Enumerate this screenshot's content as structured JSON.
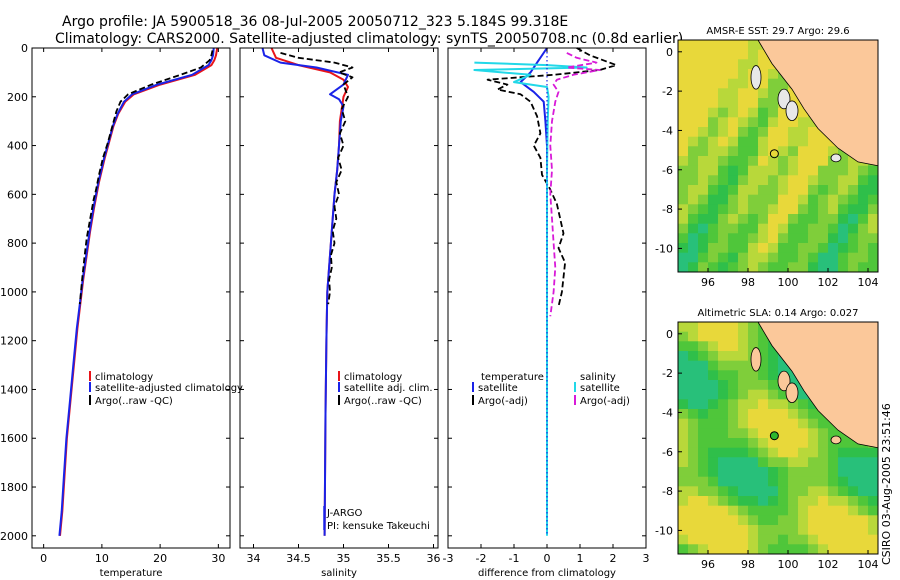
{
  "header": {
    "title_line1": "Argo profile: JA 5900518_36 08-Jul-2005 20050712_323 5.184S 99.318E",
    "title_line2": "Climatology: CARS2000. Satellite-adjusted climatology: synTS_20050708.nc (0.8d earlier)"
  },
  "footer": {
    "credit": "CSIRO 03-Aug-2005 23:51:46"
  },
  "colors": {
    "climatology": "#e8141a",
    "satellite": "#1a23e8",
    "argo": "#000000",
    "sat_diff": "#22d8e8",
    "argo_adj": "#d81ad8",
    "land": "#fbc89a",
    "ocean": "#3fbf3a"
  },
  "chart_data": [
    {
      "id": "temperature",
      "type": "line",
      "xlabel": "temperature",
      "ylabel": "",
      "xlim": [
        -2,
        32
      ],
      "ylim": [
        2050,
        0
      ],
      "xticks": [
        0,
        10,
        20,
        30
      ],
      "yticks": [
        0,
        200,
        400,
        600,
        800,
        1000,
        1200,
        1400,
        1600,
        1800,
        2000
      ],
      "legend": [
        "climatology",
        "satellite-adjusted climatology",
        "Argo(..raw -QC)"
      ],
      "series": [
        {
          "name": "climatology",
          "style": "solid",
          "color": "#e8141a",
          "points": [
            [
              29.8,
              0
            ],
            [
              29.6,
              30
            ],
            [
              29.3,
              50
            ],
            [
              28.8,
              70
            ],
            [
              26,
              110
            ],
            [
              20,
              150
            ],
            [
              15.5,
              190
            ],
            [
              14,
              220
            ],
            [
              12.8,
              270
            ],
            [
              12,
              320
            ],
            [
              11.3,
              380
            ],
            [
              10.5,
              450
            ],
            [
              9.5,
              550
            ],
            [
              8.7,
              650
            ],
            [
              8,
              750
            ],
            [
              7.4,
              850
            ],
            [
              6.8,
              950
            ],
            [
              6.3,
              1050
            ],
            [
              5.8,
              1150
            ],
            [
              5.2,
              1300
            ],
            [
              4.6,
              1450
            ],
            [
              4,
              1600
            ],
            [
              3.6,
              1750
            ],
            [
              3.2,
              1900
            ],
            [
              2.8,
              2000
            ]
          ]
        },
        {
          "name": "satellite-adjusted climatology",
          "style": "solid",
          "color": "#1a23e8",
          "points": [
            [
              29.2,
              0
            ],
            [
              29.1,
              30
            ],
            [
              28.8,
              50
            ],
            [
              28.3,
              70
            ],
            [
              25.5,
              110
            ],
            [
              19.5,
              150
            ],
            [
              15.2,
              190
            ],
            [
              13.8,
              220
            ],
            [
              12.7,
              270
            ],
            [
              11.9,
              320
            ],
            [
              11.2,
              380
            ],
            [
              10.4,
              450
            ],
            [
              9.4,
              550
            ],
            [
              8.6,
              650
            ],
            [
              7.9,
              750
            ],
            [
              7.3,
              850
            ],
            [
              6.7,
              950
            ],
            [
              6.2,
              1050
            ],
            [
              5.7,
              1150
            ],
            [
              5.1,
              1300
            ],
            [
              4.5,
              1450
            ],
            [
              3.9,
              1600
            ],
            [
              3.5,
              1750
            ],
            [
              3.1,
              1900
            ],
            [
              2.7,
              2000
            ]
          ]
        },
        {
          "name": "Argo(..raw -QC)",
          "style": "dashed",
          "color": "#000000",
          "points": [
            [
              29,
              10
            ],
            [
              28.8,
              30
            ],
            [
              28.5,
              50
            ],
            [
              27,
              80
            ],
            [
              23.5,
              110
            ],
            [
              18.5,
              150
            ],
            [
              14.5,
              190
            ],
            [
              13.2,
              220
            ],
            [
              12.5,
              260
            ],
            [
              11.8,
              320
            ],
            [
              11,
              390
            ],
            [
              10.2,
              450
            ],
            [
              9.5,
              520
            ],
            [
              9,
              580
            ],
            [
              8.6,
              620
            ],
            [
              8,
              700
            ],
            [
              7.4,
              780
            ],
            [
              7,
              860
            ],
            [
              6.6,
              950
            ],
            [
              6.2,
              1050
            ]
          ]
        }
      ]
    },
    {
      "id": "salinity",
      "type": "line",
      "xlabel": "salinity",
      "xlim": [
        33.85,
        36.05
      ],
      "ylim": [
        2050,
        0
      ],
      "xticks": [
        34,
        34.5,
        35,
        35.5,
        36
      ],
      "yticks": [
        0,
        200,
        400,
        600,
        800,
        1000,
        1200,
        1400,
        1600,
        1800,
        2000
      ],
      "legend": [
        "climatology",
        "satellite adj. clim.",
        "Argo(..raw -QC)"
      ],
      "annotations": [
        "J-ARGO",
        "PI: kensuke Takeuchi"
      ],
      "series": [
        {
          "name": "climatology",
          "style": "solid",
          "color": "#e8141a",
          "points": [
            [
              34.2,
              0
            ],
            [
              34.25,
              40
            ],
            [
              34.5,
              70
            ],
            [
              34.85,
              100
            ],
            [
              35.0,
              130
            ],
            [
              35.05,
              160
            ],
            [
              35.0,
              200
            ],
            [
              34.98,
              250
            ],
            [
              34.96,
              300
            ],
            [
              34.95,
              400
            ],
            [
              34.93,
              500
            ],
            [
              34.9,
              600
            ],
            [
              34.88,
              700
            ],
            [
              34.86,
              800
            ],
            [
              34.84,
              900
            ],
            [
              34.82,
              1000
            ],
            [
              34.81,
              1200
            ],
            [
              34.8,
              1500
            ],
            [
              34.79,
              2000
            ]
          ]
        },
        {
          "name": "satellite adj. clim.",
          "style": "solid",
          "color": "#1a23e8",
          "points": [
            [
              34.1,
              0
            ],
            [
              34.12,
              30
            ],
            [
              34.3,
              60
            ],
            [
              34.7,
              80
            ],
            [
              35.05,
              110
            ],
            [
              35.0,
              150
            ],
            [
              34.85,
              190
            ],
            [
              34.95,
              210
            ],
            [
              35.0,
              240
            ],
            [
              34.97,
              300
            ],
            [
              34.95,
              400
            ],
            [
              34.93,
              500
            ],
            [
              34.9,
              600
            ],
            [
              34.88,
              700
            ],
            [
              34.86,
              800
            ],
            [
              34.84,
              900
            ],
            [
              34.82,
              1000
            ],
            [
              34.81,
              1200
            ],
            [
              34.8,
              1500
            ],
            [
              34.79,
              2000
            ]
          ]
        },
        {
          "name": "Argo(..raw -QC)",
          "style": "dashed",
          "color": "#000000",
          "points": [
            [
              34.3,
              20
            ],
            [
              34.5,
              40
            ],
            [
              34.9,
              60
            ],
            [
              35.1,
              80
            ],
            [
              34.95,
              100
            ],
            [
              35.1,
              120
            ],
            [
              35.0,
              150
            ],
            [
              35.05,
              200
            ],
            [
              34.98,
              250
            ],
            [
              35.02,
              300
            ],
            [
              34.96,
              350
            ],
            [
              35.0,
              400
            ],
            [
              34.94,
              450
            ],
            [
              34.98,
              500
            ],
            [
              34.92,
              550
            ],
            [
              34.95,
              600
            ],
            [
              34.9,
              650
            ],
            [
              34.92,
              700
            ],
            [
              34.88,
              750
            ],
            [
              34.9,
              800
            ],
            [
              34.86,
              850
            ],
            [
              34.87,
              900
            ],
            [
              34.84,
              950
            ],
            [
              34.85,
              1000
            ],
            [
              34.83,
              1050
            ]
          ]
        }
      ]
    },
    {
      "id": "difference",
      "type": "line",
      "xlabel": "difference from climatology",
      "xlim": [
        -3,
        3
      ],
      "ylim": [
        2050,
        0
      ],
      "xticks": [
        -3,
        -2,
        -1,
        0,
        1,
        2,
        3
      ],
      "legend": [
        "temperature",
        "satellite",
        "Argo(-adj)",
        "salinity",
        "satellite",
        "Argo(-adj)"
      ],
      "series": [
        {
          "name": "temperature satellite",
          "style": "solid",
          "color": "#1a23e8",
          "points": [
            [
              0,
              0
            ],
            [
              -0.3,
              60
            ],
            [
              -0.5,
              100
            ],
            [
              -0.8,
              140
            ],
            [
              -0.4,
              180
            ],
            [
              -0.1,
              220
            ],
            [
              -0.05,
              300
            ],
            [
              0,
              400
            ],
            [
              0,
              600
            ],
            [
              0,
              1000
            ],
            [
              0,
              1500
            ],
            [
              0,
              1900
            ]
          ]
        },
        {
          "name": "temperature Argo(-adj)",
          "style": "dashed",
          "color": "#000000",
          "points": [
            [
              0.9,
              0
            ],
            [
              1.3,
              30
            ],
            [
              2.1,
              70
            ],
            [
              1.6,
              90
            ],
            [
              0.2,
              110
            ],
            [
              -1.8,
              130
            ],
            [
              -1.2,
              150
            ],
            [
              -1.5,
              170
            ],
            [
              -0.8,
              190
            ],
            [
              -0.5,
              220
            ],
            [
              -0.3,
              280
            ],
            [
              -0.2,
              350
            ],
            [
              -0.4,
              400
            ],
            [
              -0.2,
              450
            ],
            [
              -0.15,
              520
            ],
            [
              0.1,
              580
            ],
            [
              0.3,
              640
            ],
            [
              0.4,
              700
            ],
            [
              0.5,
              760
            ],
            [
              0.35,
              820
            ],
            [
              0.55,
              880
            ],
            [
              0.5,
              940
            ],
            [
              0.45,
              1000
            ],
            [
              0.35,
              1060
            ]
          ]
        },
        {
          "name": "salinity satellite",
          "style": "solid",
          "color": "#22d8e8",
          "points": [
            [
              -2.2,
              60
            ],
            [
              0,
              70
            ],
            [
              1.2,
              80
            ],
            [
              -2.2,
              90
            ],
            [
              -0.5,
              110
            ],
            [
              -1.0,
              140
            ],
            [
              0,
              160
            ],
            [
              0.05,
              200
            ],
            [
              0.02,
              300
            ],
            [
              0,
              500
            ],
            [
              0,
              1000
            ],
            [
              0,
              1500
            ],
            [
              0,
              2000
            ]
          ]
        },
        {
          "name": "salinity Argo(-adj)",
          "style": "dashed",
          "color": "#d81ad8",
          "points": [
            [
              0.6,
              20
            ],
            [
              0.9,
              40
            ],
            [
              1.5,
              60
            ],
            [
              0.6,
              80
            ],
            [
              1.6,
              90
            ],
            [
              0.8,
              110
            ],
            [
              0.3,
              130
            ],
            [
              0.2,
              150
            ],
            [
              0.35,
              180
            ],
            [
              0.25,
              220
            ],
            [
              0.15,
              300
            ],
            [
              0.1,
              400
            ],
            [
              0.15,
              500
            ],
            [
              0.1,
              600
            ],
            [
              0.15,
              700
            ],
            [
              0.2,
              800
            ],
            [
              0.25,
              900
            ],
            [
              0.2,
              1000
            ],
            [
              0.1,
              1100
            ]
          ]
        },
        {
          "name": "zero",
          "style": "dotted",
          "color": "#1a23e8",
          "points": [
            [
              0,
              0
            ],
            [
              0,
              2000
            ]
          ]
        }
      ]
    }
  ],
  "maps": [
    {
      "id": "sst",
      "title": "AMSR-E SST: 29.7 Argo: 29.6",
      "xticks": [
        96,
        98,
        100,
        102,
        104
      ],
      "yticks": [
        0,
        -2,
        -4,
        -6,
        -8,
        -10
      ],
      "xlim": [
        94.5,
        104.5
      ],
      "ylim": [
        -11.2,
        0.6
      ],
      "argo_lon": 99.318,
      "argo_lat": -5.184,
      "marker_fill": "none"
    },
    {
      "id": "sla",
      "title": "Altimetric SLA: 0.14 Argo: 0.027",
      "xticks": [
        96,
        98,
        100,
        102,
        104
      ],
      "yticks": [
        0,
        -2,
        -4,
        -6,
        -8,
        -10
      ],
      "xlim": [
        94.5,
        104.5
      ],
      "ylim": [
        -11.2,
        0.6
      ],
      "argo_lon": 99.318,
      "argo_lat": -5.184,
      "marker_fill": "#2eb82e"
    }
  ]
}
